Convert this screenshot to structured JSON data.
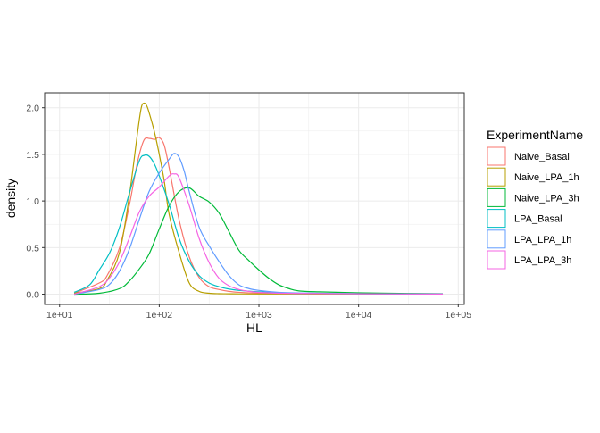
{
  "chart_data": {
    "type": "line",
    "xlabel": "HL",
    "ylabel": "density",
    "x_scale": "log10",
    "xlim": [
      10,
      100000
    ],
    "ylim": [
      0,
      2.1
    ],
    "x_ticks": [
      10,
      100,
      1000,
      10000,
      100000
    ],
    "x_tick_labels": [
      "1e+01",
      "1e+02",
      "1e+03",
      "1e+04",
      "1e+05"
    ],
    "y_ticks": [
      0,
      0.5,
      1,
      1.5,
      2
    ],
    "y_tick_labels": [
      "0.0",
      "0.5",
      "1.0",
      "1.5",
      "2.0"
    ],
    "grid": true,
    "legend": {
      "title": "ExperimentName",
      "placement": "right"
    },
    "series": [
      {
        "name": "Naive_Basal",
        "color": "#F8766D",
        "x": [
          14,
          25,
          30,
          40,
          50,
          60,
          70,
          80,
          90,
          100,
          112,
          126,
          158,
          200,
          251,
          316,
          398,
          501,
          631,
          1000,
          2000,
          3981,
          10000,
          31623,
          70000
        ],
        "y": [
          0.01,
          0.12,
          0.2,
          0.5,
          0.95,
          1.4,
          1.65,
          1.67,
          1.66,
          1.68,
          1.6,
          1.35,
          0.8,
          0.4,
          0.18,
          0.08,
          0.05,
          0.03,
          0.02,
          0.01,
          0.005,
          0.003,
          0.002,
          0.001,
          0.001
        ]
      },
      {
        "name": "Naive_LPA_1h",
        "color": "#B79F00",
        "x": [
          14,
          25,
          30,
          40,
          50,
          60,
          66,
          71,
          75,
          79,
          89,
          100,
          112,
          126,
          158,
          200,
          251,
          316,
          398,
          501,
          631,
          1000,
          2000,
          3981,
          10000,
          31623,
          70000
        ],
        "y": [
          0.01,
          0.06,
          0.15,
          0.45,
          1.05,
          1.7,
          2.0,
          2.05,
          2.02,
          1.95,
          1.75,
          1.5,
          1.22,
          0.85,
          0.45,
          0.12,
          0.03,
          0.01,
          0.005,
          0.004,
          0.003,
          0.002,
          0.002,
          0.001,
          0.001,
          0.001,
          0.001
        ]
      },
      {
        "name": "Naive_LPA_3h",
        "color": "#00BA38",
        "x": [
          14,
          25,
          40,
          50,
          63,
          79,
          100,
          126,
          158,
          200,
          251,
          316,
          398,
          501,
          631,
          794,
          1000,
          1259,
          1585,
          2000,
          2512,
          3981,
          10000,
          31623,
          70000
        ],
        "y": [
          0.0,
          0.01,
          0.06,
          0.14,
          0.27,
          0.43,
          0.7,
          0.95,
          1.1,
          1.14,
          1.05,
          0.99,
          0.87,
          0.67,
          0.47,
          0.36,
          0.26,
          0.17,
          0.1,
          0.06,
          0.035,
          0.025,
          0.015,
          0.008,
          0.005
        ]
      },
      {
        "name": "LPA_Basal",
        "color": "#00BFC4",
        "x": [
          14,
          20,
          25,
          32,
          40,
          50,
          63,
          71,
          79,
          89,
          100,
          126,
          158,
          200,
          251,
          316,
          398,
          501,
          631,
          1000,
          2000,
          3981,
          10000,
          31623,
          70000
        ],
        "y": [
          0.02,
          0.1,
          0.26,
          0.45,
          0.72,
          1.08,
          1.43,
          1.49,
          1.48,
          1.4,
          1.27,
          0.96,
          0.6,
          0.35,
          0.2,
          0.12,
          0.08,
          0.055,
          0.04,
          0.025,
          0.01,
          0.006,
          0.004,
          0.002,
          0.001
        ]
      },
      {
        "name": "LPA_LPA_1h",
        "color": "#619CFF",
        "x": [
          14,
          25,
          32,
          40,
          50,
          63,
          79,
          100,
          126,
          141,
          158,
          178,
          200,
          251,
          316,
          398,
          501,
          631,
          794,
          1000,
          1585,
          3981,
          10000,
          31623,
          70000
        ],
        "y": [
          0.0,
          0.05,
          0.11,
          0.25,
          0.48,
          0.8,
          1.1,
          1.3,
          1.45,
          1.51,
          1.47,
          1.32,
          1.1,
          0.72,
          0.52,
          0.35,
          0.2,
          0.1,
          0.06,
          0.04,
          0.02,
          0.01,
          0.005,
          0.002,
          0.001
        ]
      },
      {
        "name": "LPA_LPA_3h",
        "color": "#F564E3",
        "x": [
          14,
          25,
          32,
          40,
          50,
          63,
          79,
          100,
          126,
          141,
          158,
          200,
          251,
          316,
          398,
          501,
          631,
          794,
          1000,
          1585,
          3981,
          10000,
          31623,
          70000
        ],
        "y": [
          0.0,
          0.08,
          0.18,
          0.35,
          0.6,
          0.88,
          1.05,
          1.15,
          1.27,
          1.29,
          1.25,
          0.95,
          0.6,
          0.34,
          0.17,
          0.09,
          0.05,
          0.03,
          0.02,
          0.01,
          0.006,
          0.004,
          0.002,
          0.001
        ]
      }
    ]
  }
}
